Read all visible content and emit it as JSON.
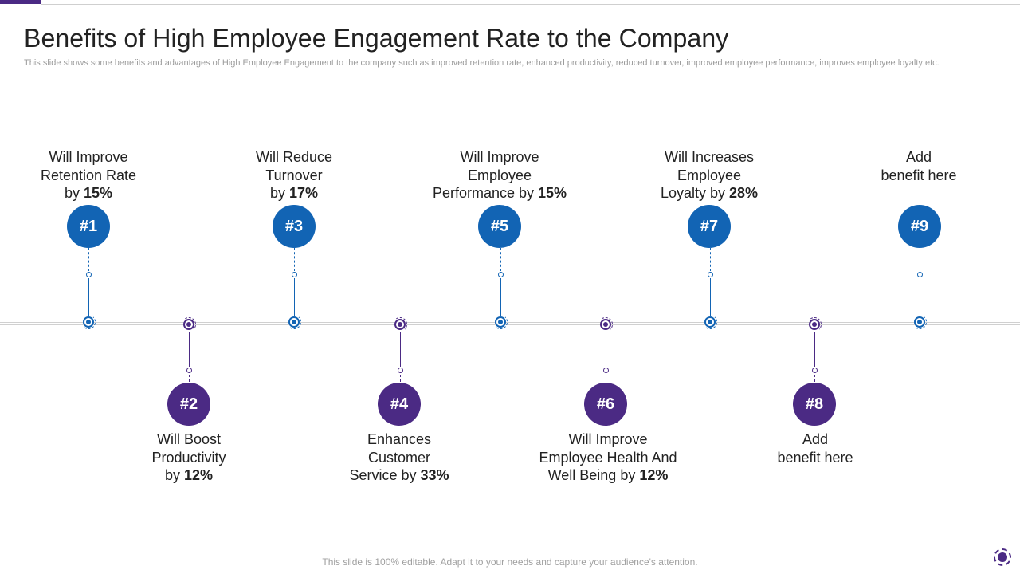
{
  "title": "Benefits of High Employee Engagement Rate to the Company",
  "subtitle": "This slide shows some benefits and advantages of High Employee Engagement to the company such as improved retention rate, enhanced productivity, reduced turnover, improved employee performance, improves employee loyalty etc.",
  "colors": {
    "up_accent": "#1264b4",
    "down_accent": "#4b2a84",
    "title": "#222222",
    "muted": "#9c9c9c"
  },
  "benefits": [
    {
      "badge": "#1",
      "text_lines": [
        "Will Improve",
        "Retention Rate"
      ],
      "prefix": "by ",
      "value": "15%"
    },
    {
      "badge": "#2",
      "text_lines": [
        "Will Boost",
        "Productivity"
      ],
      "prefix": "by ",
      "value": "12%"
    },
    {
      "badge": "#3",
      "text_lines": [
        "Will Reduce",
        "Turnover"
      ],
      "prefix": "by ",
      "value": "17%"
    },
    {
      "badge": "#4",
      "text_lines": [
        "Enhances",
        "Customer"
      ],
      "prefix": "Service by ",
      "value": "33%"
    },
    {
      "badge": "#5",
      "text_lines": [
        "Will Improve",
        "Employee"
      ],
      "prefix": "Performance by ",
      "value": "15%"
    },
    {
      "badge": "#6",
      "text_lines": [
        "Will Improve",
        "Employee Health And"
      ],
      "prefix": "Well Being by ",
      "value": "12%"
    },
    {
      "badge": "#7",
      "text_lines": [
        "Will Increases",
        "Employee"
      ],
      "prefix": "Loyalty by ",
      "value": "28%"
    },
    {
      "badge": "#8",
      "text_lines": [
        "Add",
        "benefit here"
      ],
      "prefix": "",
      "value": ""
    },
    {
      "badge": "#9",
      "text_lines": [
        "Add",
        "benefit here"
      ],
      "prefix": "",
      "value": ""
    }
  ],
  "footer": "This slide is 100% editable. Adapt it to your needs and capture your audience's attention."
}
